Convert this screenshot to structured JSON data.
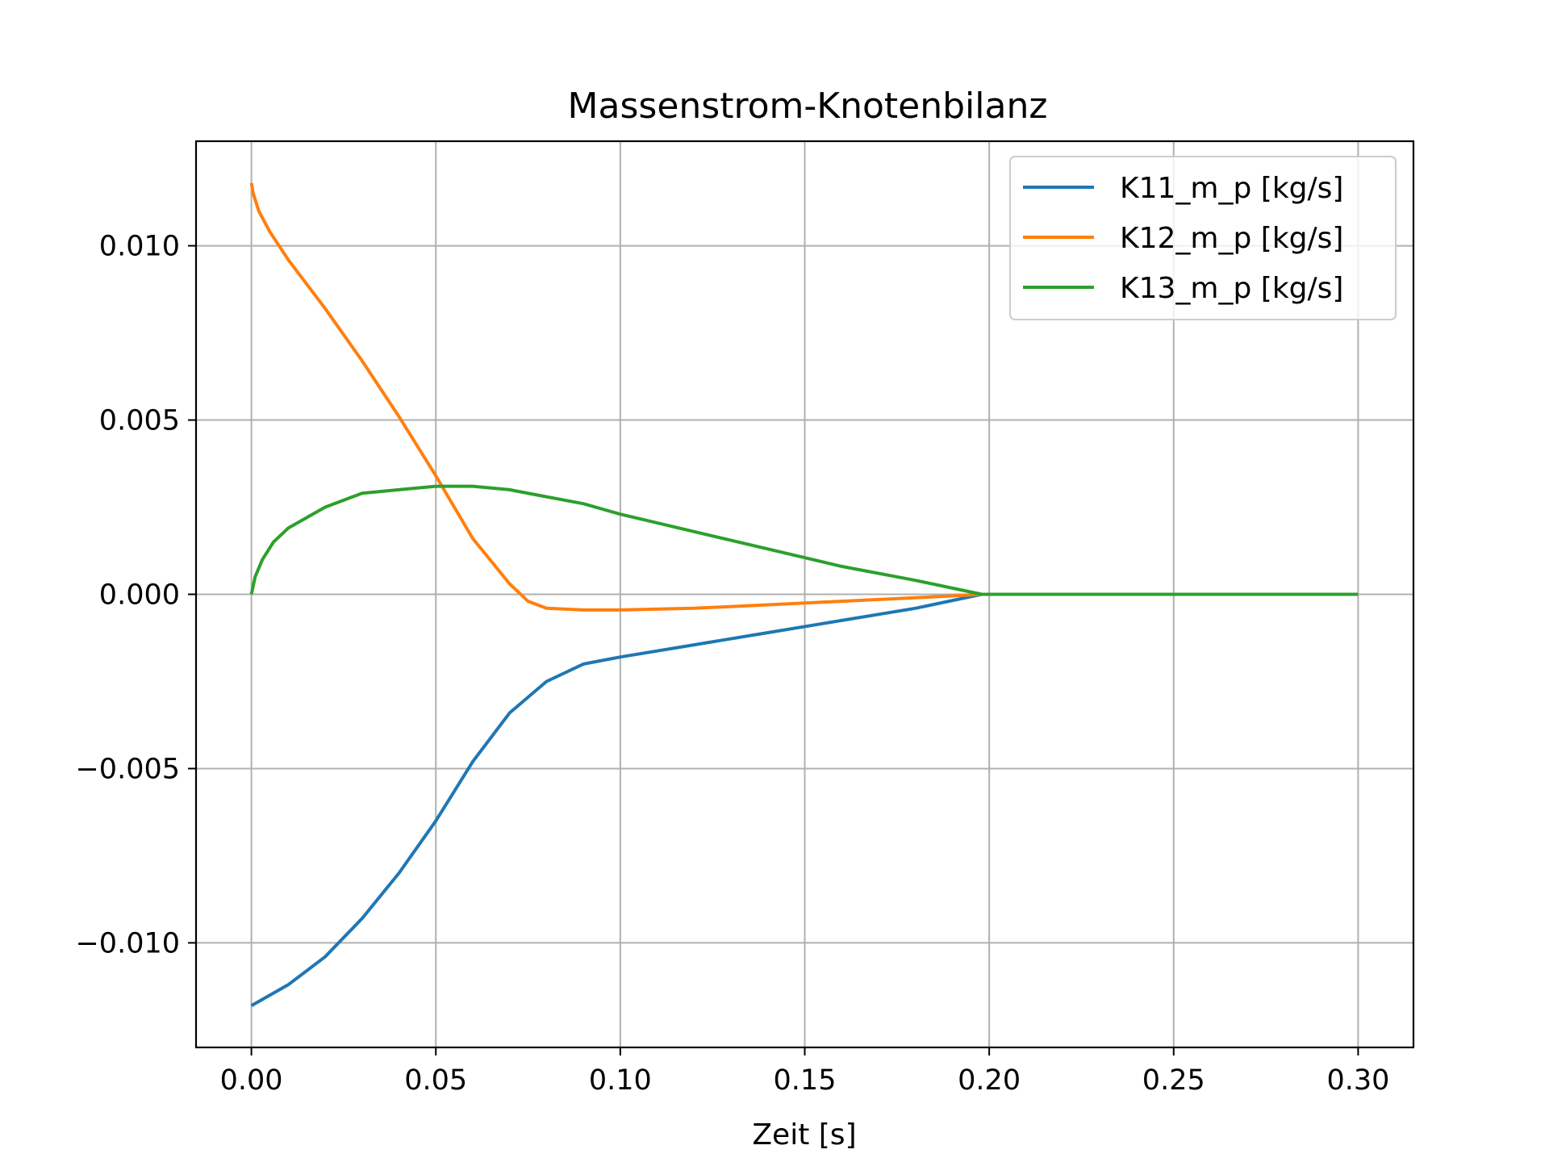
{
  "chart_data": {
    "type": "line",
    "title": "Massenstrom-Knotenbilanz",
    "xlabel": "Zeit [s]",
    "ylabel": "",
    "xlim": [
      -0.015,
      0.315
    ],
    "ylim": [
      -0.013,
      0.013
    ],
    "xticks": [
      0.0,
      0.05,
      0.1,
      0.15,
      0.2,
      0.25,
      0.3
    ],
    "xtick_labels": [
      "0.00",
      "0.05",
      "0.10",
      "0.15",
      "0.20",
      "0.25",
      "0.30"
    ],
    "yticks": [
      -0.01,
      -0.005,
      0.0,
      0.005,
      0.01
    ],
    "ytick_labels": [
      "−0.010",
      "−0.005",
      "0.000",
      "0.005",
      "0.010"
    ],
    "grid": true,
    "legend_position": "top-right",
    "series": [
      {
        "name": "K11_m_p [kg/s]",
        "color": "#1f77b4",
        "x": [
          0.0,
          0.005,
          0.01,
          0.02,
          0.03,
          0.04,
          0.05,
          0.06,
          0.07,
          0.08,
          0.09,
          0.1,
          0.12,
          0.14,
          0.16,
          0.18,
          0.198,
          0.2,
          0.25,
          0.3
        ],
        "y": [
          -0.0118,
          -0.0115,
          -0.0112,
          -0.0104,
          -0.0093,
          -0.008,
          -0.0065,
          -0.0048,
          -0.0034,
          -0.0025,
          -0.002,
          -0.0018,
          -0.00145,
          -0.0011,
          -0.00075,
          -0.0004,
          0.0,
          0.0,
          0.0,
          0.0
        ]
      },
      {
        "name": "K12_m_p [kg/s]",
        "color": "#ff7f0e",
        "x": [
          0.0,
          0.0005,
          0.002,
          0.005,
          0.01,
          0.02,
          0.03,
          0.04,
          0.05,
          0.06,
          0.07,
          0.075,
          0.08,
          0.09,
          0.1,
          0.12,
          0.14,
          0.16,
          0.18,
          0.198,
          0.2,
          0.25,
          0.3
        ],
        "y": [
          0.0118,
          0.0115,
          0.011,
          0.0104,
          0.0096,
          0.0082,
          0.0067,
          0.0051,
          0.0034,
          0.0016,
          0.0003,
          -0.0002,
          -0.0004,
          -0.00045,
          -0.00045,
          -0.0004,
          -0.0003,
          -0.0002,
          -0.0001,
          0.0,
          0.0,
          0.0,
          0.0
        ]
      },
      {
        "name": "K13_m_p [kg/s]",
        "color": "#2ca02c",
        "x": [
          0.0,
          0.001,
          0.003,
          0.006,
          0.01,
          0.02,
          0.03,
          0.04,
          0.05,
          0.06,
          0.07,
          0.08,
          0.09,
          0.1,
          0.12,
          0.14,
          0.16,
          0.18,
          0.198,
          0.2,
          0.25,
          0.3
        ],
        "y": [
          0.0,
          0.0005,
          0.001,
          0.0015,
          0.0019,
          0.0025,
          0.0029,
          0.003,
          0.0031,
          0.0031,
          0.003,
          0.0028,
          0.0026,
          0.0023,
          0.0018,
          0.0013,
          0.0008,
          0.0004,
          0.0,
          0.0,
          0.0,
          0.0
        ]
      }
    ]
  }
}
